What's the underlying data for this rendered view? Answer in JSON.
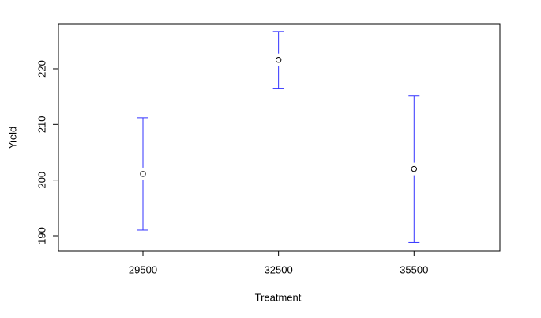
{
  "chart_data": {
    "type": "errorbar",
    "x_label": "Treatment",
    "y_label": "Yield",
    "x": [
      29500,
      32500,
      35500
    ],
    "values": [
      201.1,
      221.6,
      202.0
    ],
    "errors": [
      10.1,
      5.1,
      13.2
    ],
    "point_color": "#000000",
    "error_color": "#3333ff",
    "xlim": [
      27630,
      37400
    ],
    "ylim": [
      187.3,
      228.1
    ],
    "xticks": [
      29500,
      32500,
      35500
    ],
    "yticks": [
      190,
      200,
      210,
      220
    ],
    "grid": false
  }
}
